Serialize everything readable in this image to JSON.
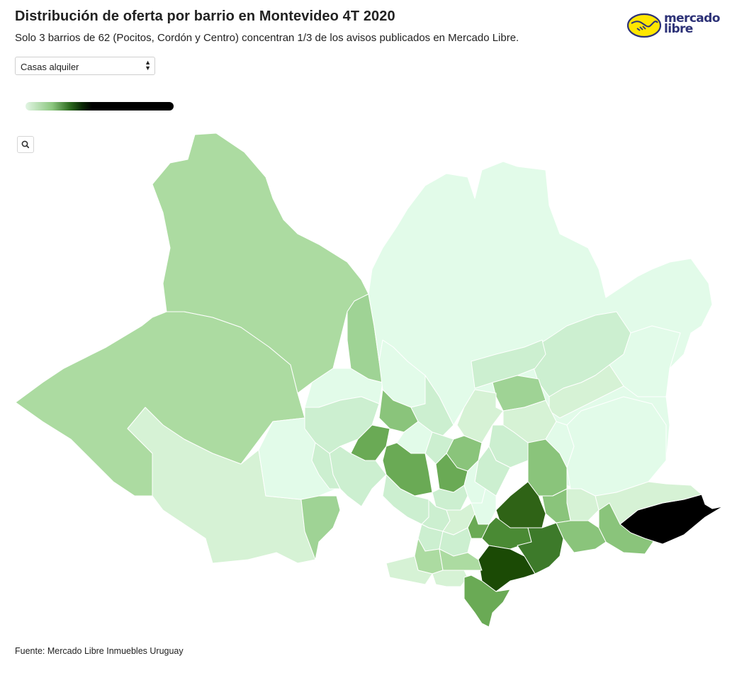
{
  "header": {
    "title": "Distribución de oferta por barrio en Montevideo 4T 2020",
    "subtitle": "Solo 3 barrios de 62 (Pocitos, Cordón y Centro) concentran 1/3 de los avisos publicados en Mercado Libre."
  },
  "logo": {
    "line1": "mercado",
    "line2": "libre",
    "colors": {
      "yellow": "#ffe600",
      "navy": "#2d3277"
    }
  },
  "filter": {
    "selected": "Casas alquiler"
  },
  "legend": {
    "colors": [
      "#e2f5e4",
      "#8cc77f",
      "#2d6b1f",
      "#0b2a06",
      "#000000"
    ]
  },
  "zoom": {
    "icon": "search-icon"
  },
  "map": {
    "total_barrios": 62,
    "highlighted": [
      "Pocitos",
      "Cordón",
      "Centro"
    ],
    "palette": {
      "lightest": "#e2fbe9",
      "light": "#cdeecd",
      "medium_light": "#acdba1",
      "medium": "#8ac47b",
      "medium_dark": "#6aaa55",
      "dark": "#4a8a34",
      "darker": "#2f6316",
      "darkest": "#1b4a05",
      "max": "#000000"
    }
  },
  "footer": {
    "source": "Fuente: Mercado Libre Inmuebles Uruguay"
  }
}
